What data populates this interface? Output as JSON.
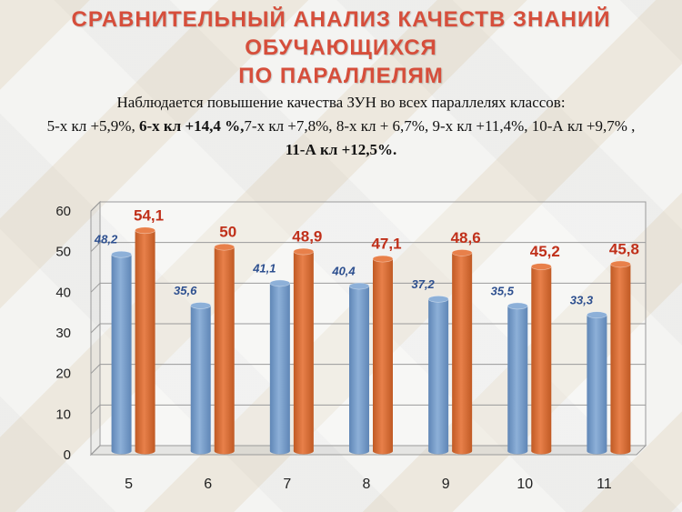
{
  "title_line1": "СРАВНИТЕЛЬНЫЙ АНАЛИЗ КАЧЕСТВ ЗНАНИЙ ОБУЧАЮЩИХСЯ",
  "title_line2": "ПО ПАРАЛЛЕЛЯМ",
  "subtitle": {
    "line1": "Наблюдается повышение качества ЗУН во всех параллелях классов:",
    "part_5": "5-х кл  +5,9%,",
    "part_6": "6-х кл  +14,4 %,",
    "part_7": "7-х кл +7,8%,",
    "part_8": "8-х кл  + 6,7%,",
    "part_9": "9-х кл",
    "part_9b": "+11,4%,",
    "part_10": "10-А кл +9,7%  ,",
    "part_11": "11-А кл  +12,5%."
  },
  "colors": {
    "series1": "#8db0d8",
    "series1_dark": "#5f86b6",
    "series1_label": "#2d4f8f",
    "series2": "#e8804a",
    "series2_dark": "#c05a24",
    "series2_label": "#c0301a",
    "title": "#d64e3b"
  },
  "chart_data": {
    "type": "bar",
    "categories": [
      "5",
      "6",
      "7",
      "8",
      "9",
      "10",
      "11"
    ],
    "series": [
      {
        "values": [
          48.2,
          35.6,
          41.1,
          40.4,
          37.2,
          35.5,
          33.3
        ],
        "labels": [
          "48,2",
          "35,6",
          "41,1",
          "40,4",
          "37,2",
          "35,5",
          "33,3"
        ]
      },
      {
        "values": [
          54.1,
          50,
          48.9,
          47.1,
          48.6,
          45.2,
          45.8
        ],
        "labels": [
          "54,1",
          "50",
          "48,9",
          "47,1",
          "48,6",
          "45,2",
          "45,8"
        ]
      }
    ],
    "yticks": [
      "0",
      "10",
      "20",
      "30",
      "40",
      "50",
      "60"
    ],
    "ylim": [
      0,
      60
    ],
    "grid": true,
    "legend": "none"
  }
}
